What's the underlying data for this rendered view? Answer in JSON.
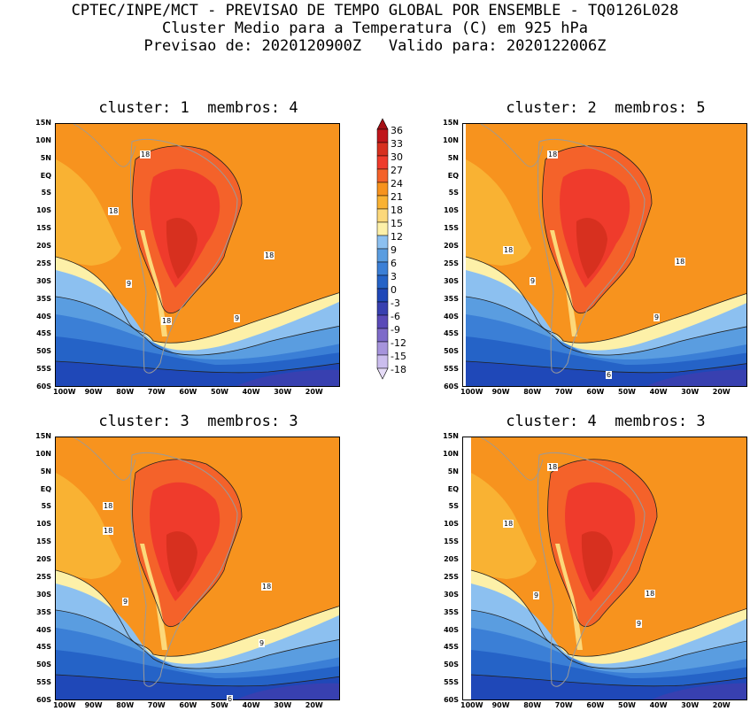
{
  "header": {
    "line1": "CPTEC/INPE/MCT - PREVISAO DE TEMPO GLOBAL POR ENSEMBLE - TQ0126L028",
    "line2": "Cluster Medio para a Temperatura (C) em 925 hPa",
    "line3": "Previsao de: 2020120900Z   Valido para: 2020122006Z"
  },
  "panels": [
    {
      "title": "cluster: 1  membros: 4"
    },
    {
      "title": "cluster: 2  membros: 5"
    },
    {
      "title": "cluster: 3  membros: 3"
    },
    {
      "title": "cluster: 4  membros: 3"
    }
  ],
  "lat_labels": [
    "15N",
    "10N",
    "5N",
    "EQ",
    "5S",
    "10S",
    "15S",
    "20S",
    "25S",
    "30S",
    "35S",
    "40S",
    "45S",
    "50S",
    "55S",
    "60S"
  ],
  "lon_labels": [
    "100W",
    "90W",
    "80W",
    "70W",
    "60W",
    "50W",
    "40W",
    "30W",
    "20W"
  ],
  "contour_labels": {
    "p1": [
      "18",
      "18",
      "18",
      "9",
      "18",
      "9"
    ],
    "p2": [
      "18",
      "18",
      "9",
      "18",
      "9",
      "6"
    ],
    "p3": [
      "18",
      "18",
      "18",
      "9",
      "9",
      "6"
    ],
    "p4": [
      "18",
      "18",
      "18",
      "9",
      "9"
    ]
  },
  "colorbar": {
    "labels": [
      "36",
      "33",
      "30",
      "27",
      "24",
      "21",
      "18",
      "15",
      "12",
      "9",
      "6",
      "3",
      "0",
      "-3",
      "-6",
      "-9",
      "-12",
      "-15",
      "-18"
    ],
    "colors": [
      "#a50f15",
      "#c0161b",
      "#d7301f",
      "#ef3b2c",
      "#f4622a",
      "#f7931e",
      "#f9b233",
      "#fcd87a",
      "#fdf0a8",
      "#8cc0f0",
      "#5a9de0",
      "#3b7fd6",
      "#2563c7",
      "#1f48b8",
      "#3840b0",
      "#5a4ab8",
      "#7e6bc9",
      "#a694dc",
      "#cbbdee",
      "#e6dcf7"
    ]
  },
  "chart_data": {
    "type": "heatmap",
    "variable": "Temperatura (C) em 925 hPa",
    "xlim": [
      "100W",
      "15W"
    ],
    "ylim": [
      "60S",
      "15N"
    ],
    "levels": [
      -18,
      -15,
      -12,
      -9,
      -6,
      -3,
      0,
      3,
      6,
      9,
      12,
      15,
      18,
      21,
      24,
      27,
      30,
      33,
      36
    ]
  }
}
